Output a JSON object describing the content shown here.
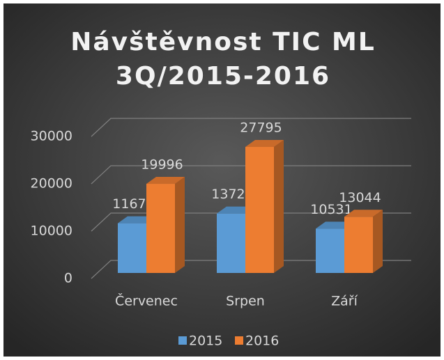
{
  "chart_data": {
    "type": "bar3d",
    "title": [
      "Návštěvnost TIC ML",
      "3Q/2015-2016"
    ],
    "categories": [
      "Červenec",
      "Srpen",
      "Září"
    ],
    "series": [
      {
        "name": "2015",
        "color": "#5b9bd5",
        "values": [
          11671,
          13723,
          10531
        ]
      },
      {
        "name": "2016",
        "color": "#ed7d31",
        "values": [
          19996,
          27795,
          13044
        ]
      }
    ],
    "ylim": [
      0,
      30000
    ],
    "yticks": [
      0,
      10000,
      20000,
      30000
    ],
    "grid": true,
    "legend": "bottom"
  }
}
